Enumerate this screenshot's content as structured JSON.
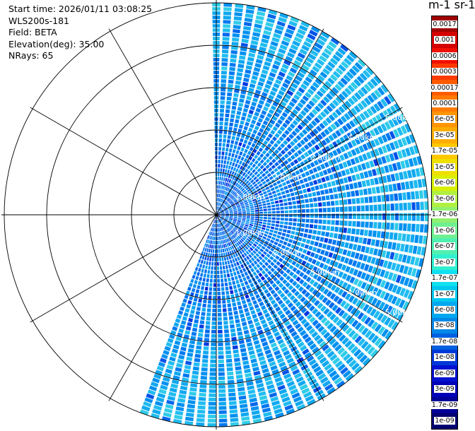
{
  "scan_info": {
    "start_time": "Start time: 2026/01/11 03:08:25",
    "instrument": "WLS200s-181",
    "field": "Field: BETA",
    "elevation": "Elevation(deg): 35.00",
    "nrays": "NRays: 65"
  },
  "colorbar": {
    "title": "m-1 sr-1",
    "labels": [
      "0.0017",
      "0.001",
      "0.0006",
      "0.0003",
      "0.00017",
      "0.0001",
      "6e-05",
      "3e-05",
      "1.7e-05",
      "1e-05",
      "6e-06",
      "3e-06",
      "1.7e-06",
      "1e-06",
      "6e-07",
      "3e-07",
      "1.7e-07",
      "1e-07",
      "6e-08",
      "3e-08",
      "1.7e-08",
      "1e-08",
      "6e-09",
      "3e-09",
      "1.7e-09",
      "1e-09"
    ],
    "colors": [
      "#a00000",
      "#d40000",
      "#f01000",
      "#ff3a00",
      "#ff5a00",
      "#ff7a00",
      "#ff9500",
      "#ffad00",
      "#ffc800",
      "#f0e000",
      "#d8f000",
      "#b0f040",
      "#90f070",
      "#70f090",
      "#50f0b0",
      "#30f0d0",
      "#10e0f0",
      "#00c8f0",
      "#00a8f0",
      "#0088e8",
      "#0060e0",
      "#0038d8",
      "#0010d0",
      "#0000b8",
      "#000098",
      "#000070"
    ]
  },
  "chart_data": {
    "type": "ppi",
    "title": "",
    "field": "BETA",
    "units": "m-1 sr-1",
    "elevation_deg": 35.0,
    "nrays": 65,
    "azimuth_range_deg": [
      0,
      200
    ],
    "range_rings_km": [
      1,
      2,
      3,
      4,
      5
    ],
    "range_labels": [
      "1.00km",
      "2.00km",
      "3.00km",
      "4.00km",
      "5.00km"
    ],
    "max_range_km": 5.0,
    "value_range": [
      1e-09,
      0.0017
    ],
    "scale": "log",
    "grid": true
  }
}
